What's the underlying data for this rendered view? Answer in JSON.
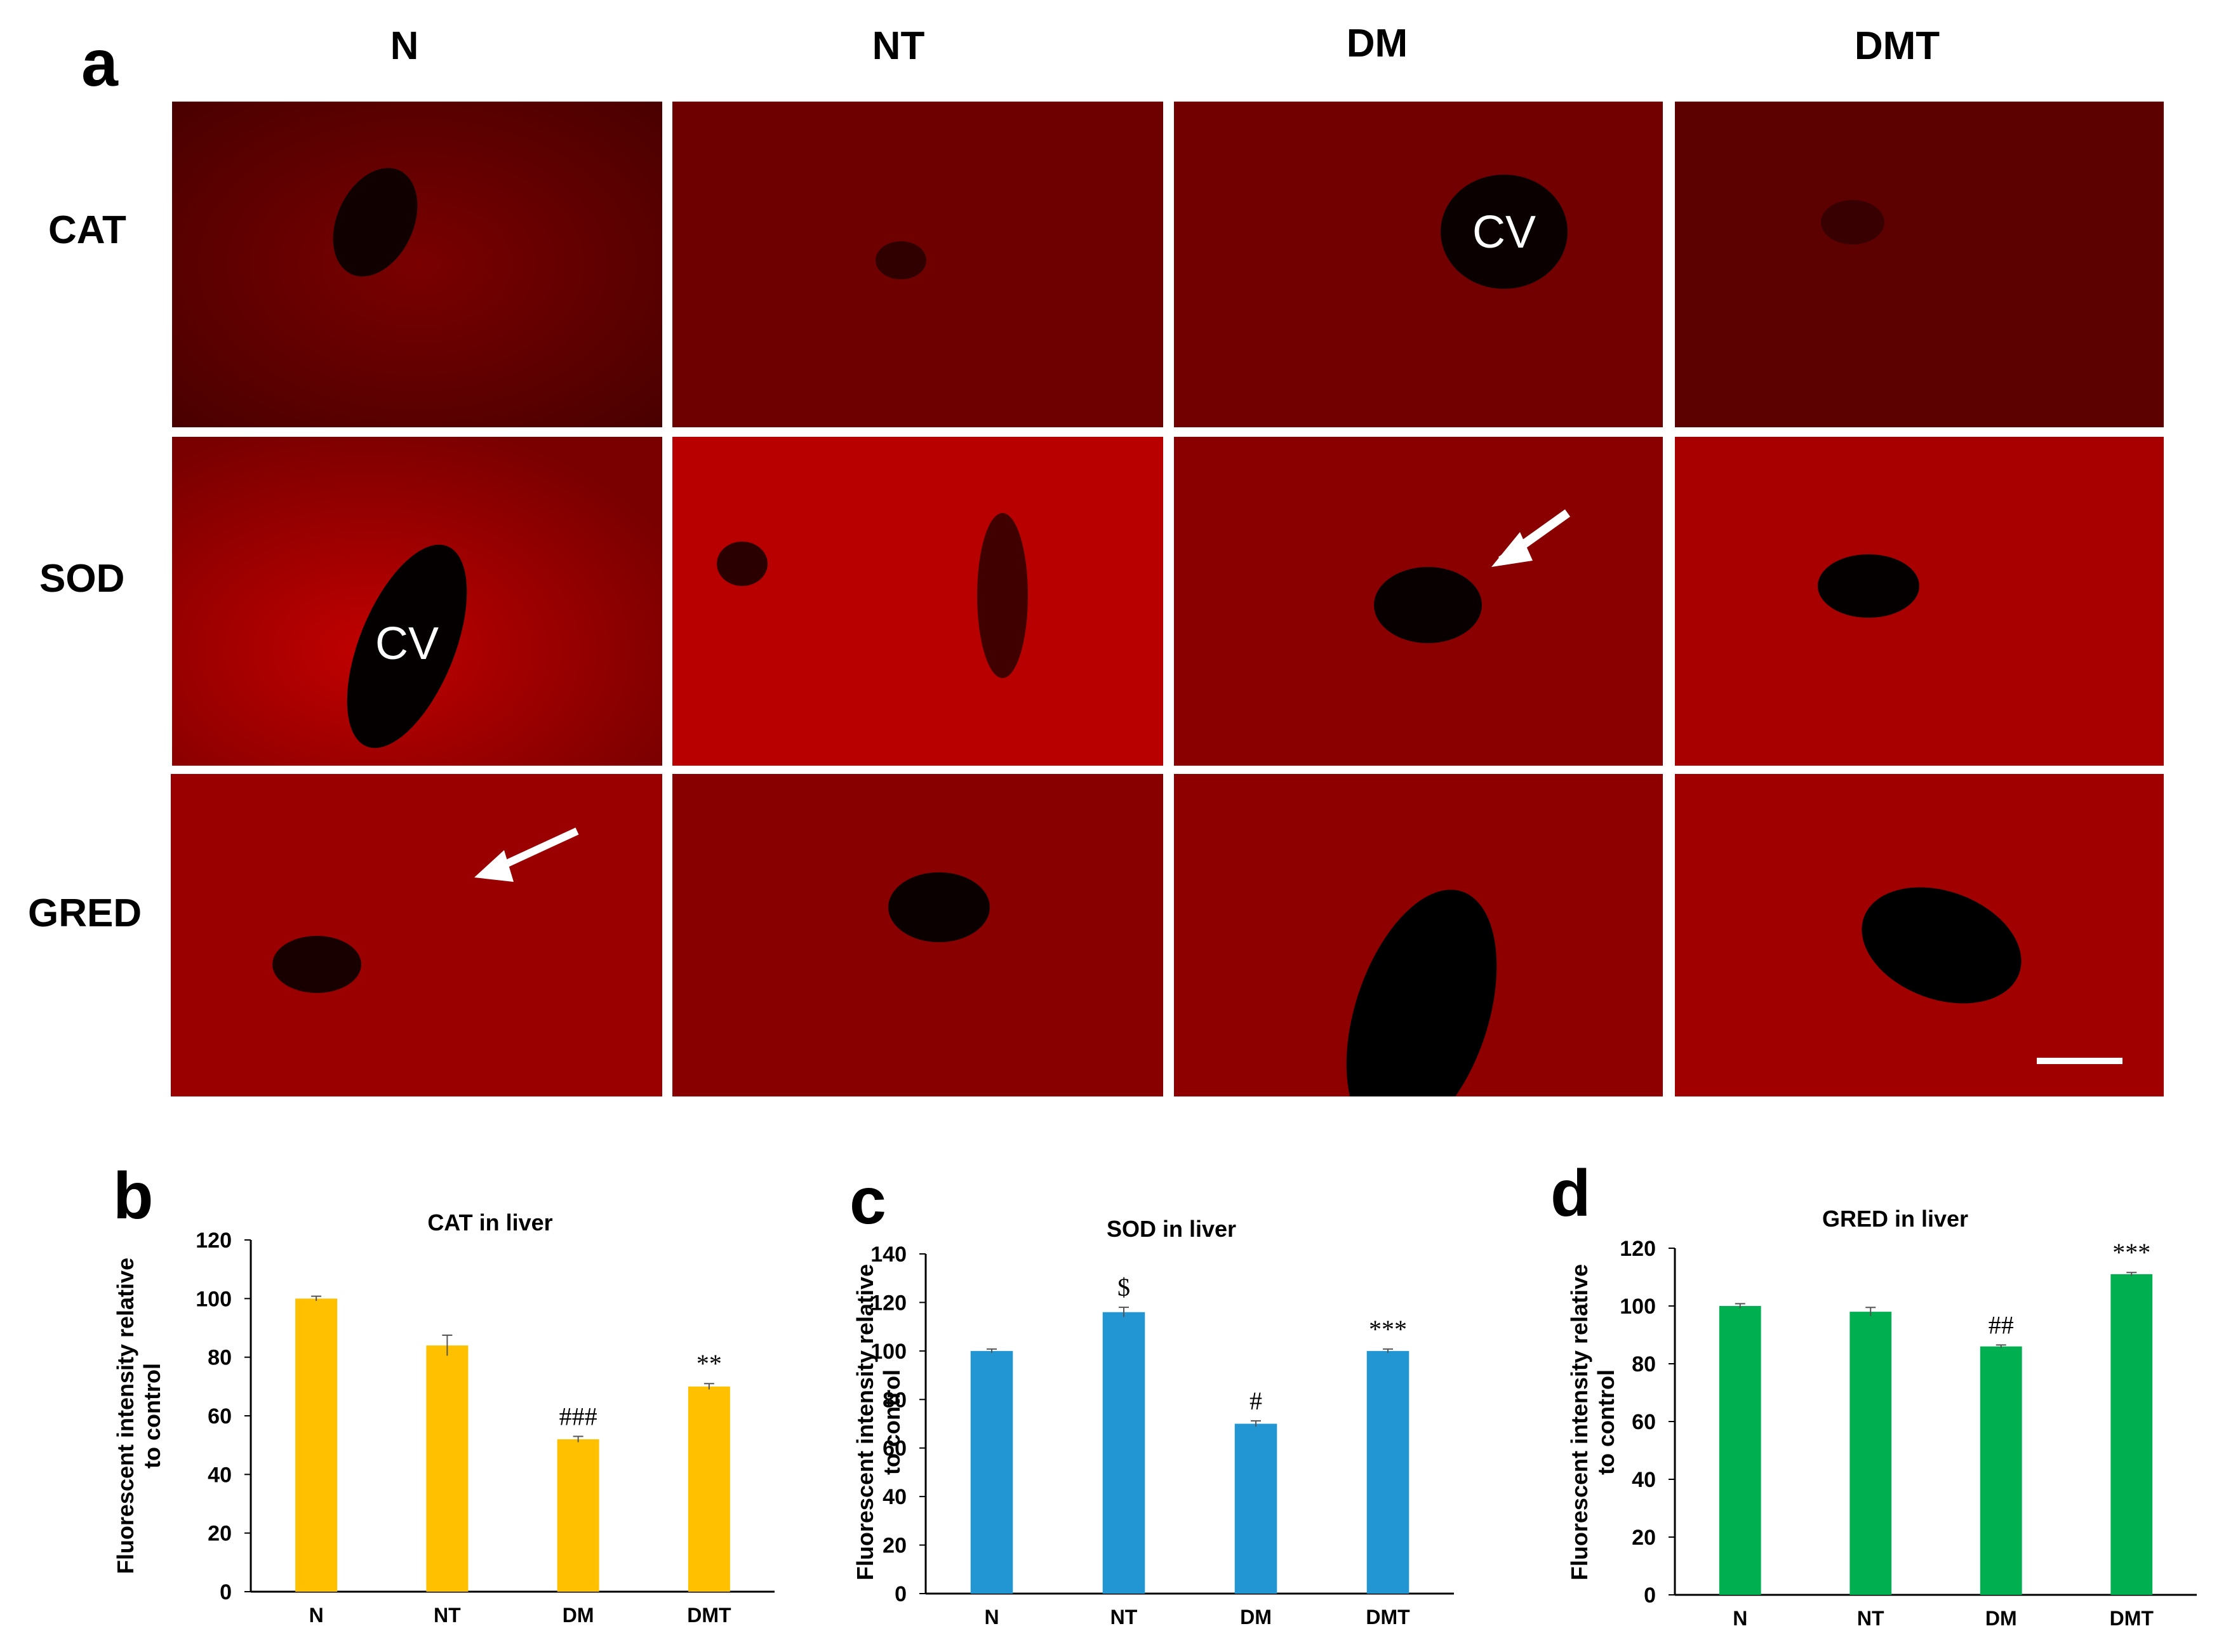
{
  "figure": {
    "panel_labels": [
      "a",
      "b",
      "c",
      "d"
    ],
    "columns": [
      "N",
      "NT",
      "DM",
      "DMT"
    ],
    "rows": [
      "CAT",
      "SOD",
      "GRED"
    ],
    "annotations": [
      {
        "panel": "CAT-DM",
        "label": "CV"
      },
      {
        "panel": "SOD-N",
        "label": "CV"
      }
    ]
  },
  "chart_data": [
    {
      "type": "bar",
      "title": "CAT in liver",
      "ylabel": "Fluorescent intensity relative to control",
      "categories": [
        "N",
        "NT",
        "DM",
        "DMT"
      ],
      "values": [
        100,
        84,
        52,
        70
      ],
      "errors": [
        0.8,
        3.5,
        1.0,
        1.0
      ],
      "significance": [
        "",
        "",
        "###",
        "**"
      ],
      "ylim": [
        0,
        120
      ],
      "yticks": [
        0,
        20,
        40,
        60,
        80,
        100,
        120
      ],
      "color": "#FFC000"
    },
    {
      "type": "bar",
      "title": "SOD in liver",
      "ylabel": "Fluorescent intensity relative to control",
      "categories": [
        "N",
        "NT",
        "DM",
        "DMT"
      ],
      "values": [
        100,
        116,
        70,
        100
      ],
      "errors": [
        0.8,
        2.0,
        1.2,
        0.8
      ],
      "significance": [
        "",
        "$",
        "#",
        "***"
      ],
      "ylim": [
        0,
        140
      ],
      "yticks": [
        0,
        20,
        40,
        60,
        80,
        100,
        120,
        140
      ],
      "color": "#2196D3"
    },
    {
      "type": "bar",
      "title": "GRED in liver",
      "ylabel": "Fluorescent intensity relative to control",
      "categories": [
        "N",
        "NT",
        "DM",
        "DMT"
      ],
      "values": [
        100,
        98,
        86,
        111
      ],
      "errors": [
        0.8,
        1.5,
        0.5,
        0.6
      ],
      "significance": [
        "",
        "",
        "##",
        "***"
      ],
      "ylim": [
        0,
        120
      ],
      "yticks": [
        0,
        20,
        40,
        60,
        80,
        100,
        120
      ],
      "color": "#00B050"
    }
  ]
}
